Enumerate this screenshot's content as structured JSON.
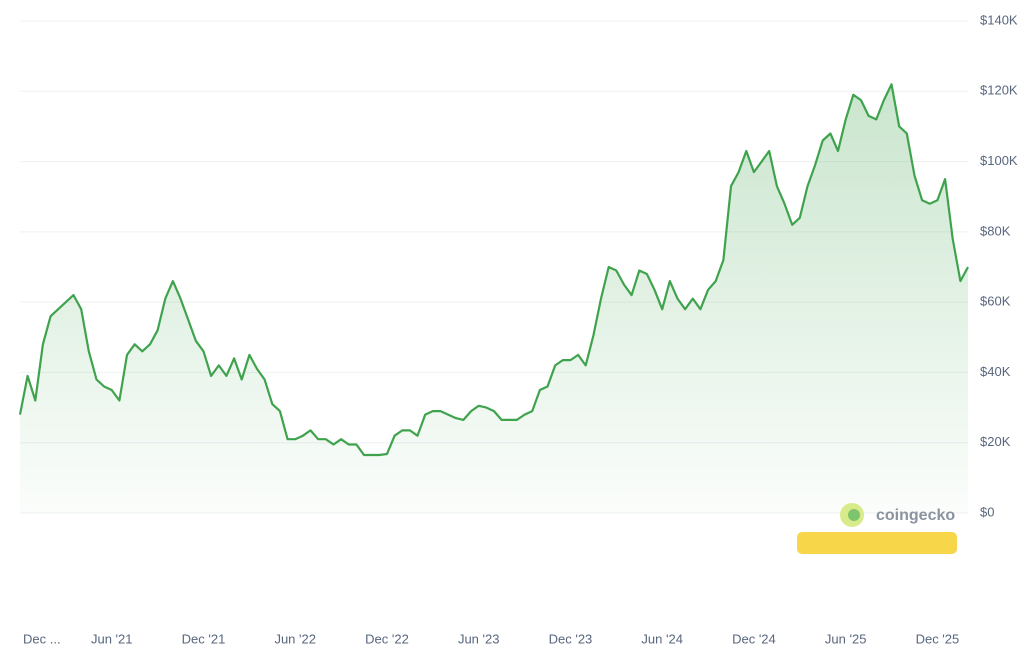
{
  "chart_data": {
    "type": "line",
    "watermark": "coingecko",
    "color": "#3fa34d",
    "categories": [
      "Dec ...",
      null,
      null,
      null,
      null,
      null,
      null,
      null,
      null,
      null,
      null,
      null,
      "Jun '21",
      null,
      null,
      null,
      null,
      null,
      null,
      null,
      null,
      null,
      null,
      null,
      "Dec '21",
      null,
      null,
      null,
      null,
      null,
      null,
      null,
      null,
      null,
      null,
      null,
      "Jun '22",
      null,
      null,
      null,
      null,
      null,
      null,
      null,
      null,
      null,
      null,
      null,
      "Dec '22",
      null,
      null,
      null,
      null,
      null,
      null,
      null,
      null,
      null,
      null,
      null,
      "Jun '23",
      null,
      null,
      null,
      null,
      null,
      null,
      null,
      null,
      null,
      null,
      null,
      "Dec '23",
      null,
      null,
      null,
      null,
      null,
      null,
      null,
      null,
      null,
      null,
      null,
      "Jun '24",
      null,
      null,
      null,
      null,
      null,
      null,
      null,
      null,
      null,
      null,
      null,
      "Dec '24",
      null,
      null,
      null,
      null,
      null,
      null,
      null,
      null,
      null,
      null,
      null,
      "Jun '25",
      null,
      null,
      null,
      null,
      null,
      null,
      null,
      null,
      null,
      null,
      null,
      "Dec '25",
      null,
      null,
      null,
      null
    ],
    "values": [
      28000,
      39000,
      32000,
      48000,
      56000,
      58000,
      60000,
      62000,
      58000,
      46000,
      38000,
      36000,
      35000,
      32000,
      45000,
      48000,
      46000,
      48000,
      52000,
      61000,
      66000,
      61000,
      55000,
      49000,
      46000,
      39000,
      42000,
      39000,
      44000,
      38000,
      45000,
      41000,
      38000,
      31000,
      29000,
      21000,
      21000,
      22000,
      23500,
      21000,
      21000,
      19500,
      21000,
      19500,
      19500,
      16500,
      16500,
      16500,
      16800,
      22000,
      23500,
      23500,
      22000,
      28000,
      29000,
      29000,
      28000,
      27000,
      26500,
      29000,
      30500,
      30000,
      29000,
      26500,
      26500,
      26500,
      28000,
      29000,
      35000,
      36000,
      42000,
      43500,
      43500,
      45000,
      42000,
      50500,
      61000,
      70000,
      69000,
      65000,
      62000,
      69000,
      68000,
      63500,
      58000,
      66000,
      61000,
      58000,
      61000,
      58000,
      63500,
      66000,
      72000,
      93000,
      97000,
      103000,
      97000,
      100000,
      103000,
      93000,
      88000,
      82000,
      84000,
      93000,
      99000,
      106000,
      108000,
      103000,
      112000,
      119000,
      117500,
      113000,
      112000,
      117500,
      122000,
      110000,
      108000,
      96000,
      89000,
      88000,
      89000,
      95000,
      78000,
      66000,
      70000
    ],
    "ylim": [
      0,
      140000
    ],
    "yticks": [
      {
        "value": 0,
        "label": "$0"
      },
      {
        "value": 20000,
        "label": "$20K"
      },
      {
        "value": 40000,
        "label": "$40K"
      },
      {
        "value": 60000,
        "label": "$60K"
      },
      {
        "value": 80000,
        "label": "$80K"
      },
      {
        "value": 100000,
        "label": "$100K"
      },
      {
        "value": 120000,
        "label": "$120K"
      },
      {
        "value": 140000,
        "label": "$140K"
      }
    ],
    "grid": true
  }
}
